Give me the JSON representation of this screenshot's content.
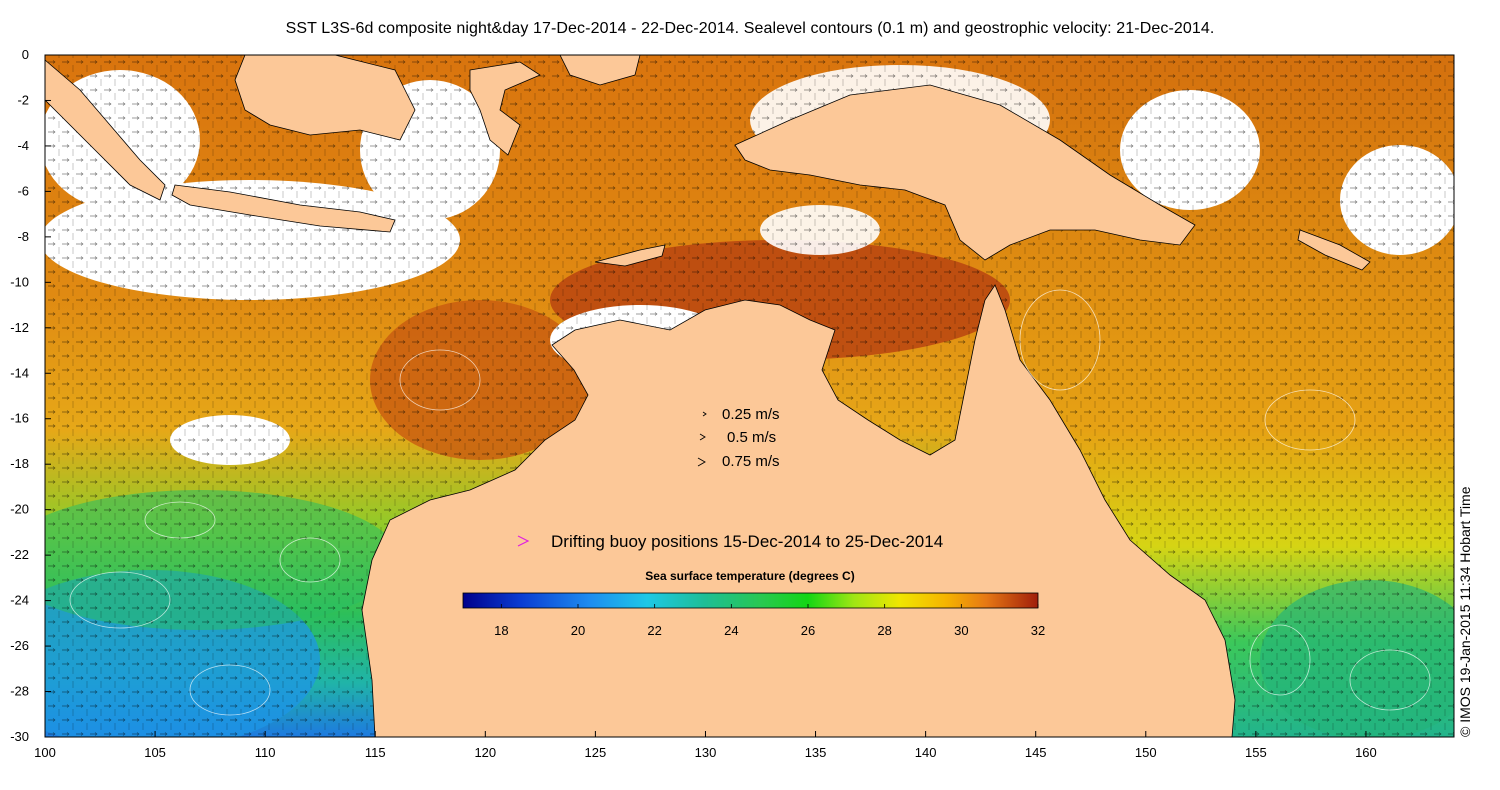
{
  "title": "SST L3S-6d composite night&day 17-Dec-2014 - 22-Dec-2014. Sealevel contours (0.1 m) and geostrophic velocity: 21-Dec-2014.",
  "credit": "© IMOS 19-Jan-2015 11:34 Hobart Time",
  "colors": {
    "land": "#fcc898",
    "sst_cold": "#00008c",
    "sst_warm": "#a01e0a",
    "buoy_marker": "#e020e0"
  },
  "map": {
    "lon_range": [
      100,
      164
    ],
    "lat_range": [
      -30,
      0
    ],
    "x_ticks": [
      "100",
      "105",
      "110",
      "115",
      "120",
      "125",
      "130",
      "135",
      "140",
      "145",
      "150",
      "155",
      "160"
    ],
    "y_ticks": [
      "0",
      "-2",
      "-4",
      "-6",
      "-8",
      "-10",
      "-12",
      "-14",
      "-16",
      "-18",
      "-20",
      "-22",
      "-24",
      "-26",
      "-28",
      "-30"
    ],
    "x_tick_values": [
      100,
      105,
      110,
      115,
      120,
      125,
      130,
      135,
      140,
      145,
      150,
      155,
      160
    ],
    "y_tick_values": [
      0,
      -2,
      -4,
      -6,
      -8,
      -10,
      -12,
      -14,
      -16,
      -18,
      -20,
      -22,
      -24,
      -26,
      -28,
      -30
    ]
  },
  "velocity_legend": {
    "entries": [
      {
        "label": "0.25 m/s",
        "speed": 0.25
      },
      {
        "label": "0.5 m/s",
        "speed": 0.5
      },
      {
        "label": "0.75 m/s",
        "speed": 0.75
      }
    ]
  },
  "buoy_legend": {
    "label": "Drifting buoy positions 15-Dec-2014 to 25-Dec-2014",
    "icon": "chevron-right-icon"
  },
  "colorbar": {
    "title": "Sea surface temperature (degrees C)",
    "range": [
      17,
      32
    ],
    "ticks": [
      "18",
      "20",
      "22",
      "24",
      "26",
      "28",
      "30",
      "32"
    ],
    "tick_values": [
      18,
      20,
      22,
      24,
      26,
      28,
      30,
      32
    ]
  }
}
